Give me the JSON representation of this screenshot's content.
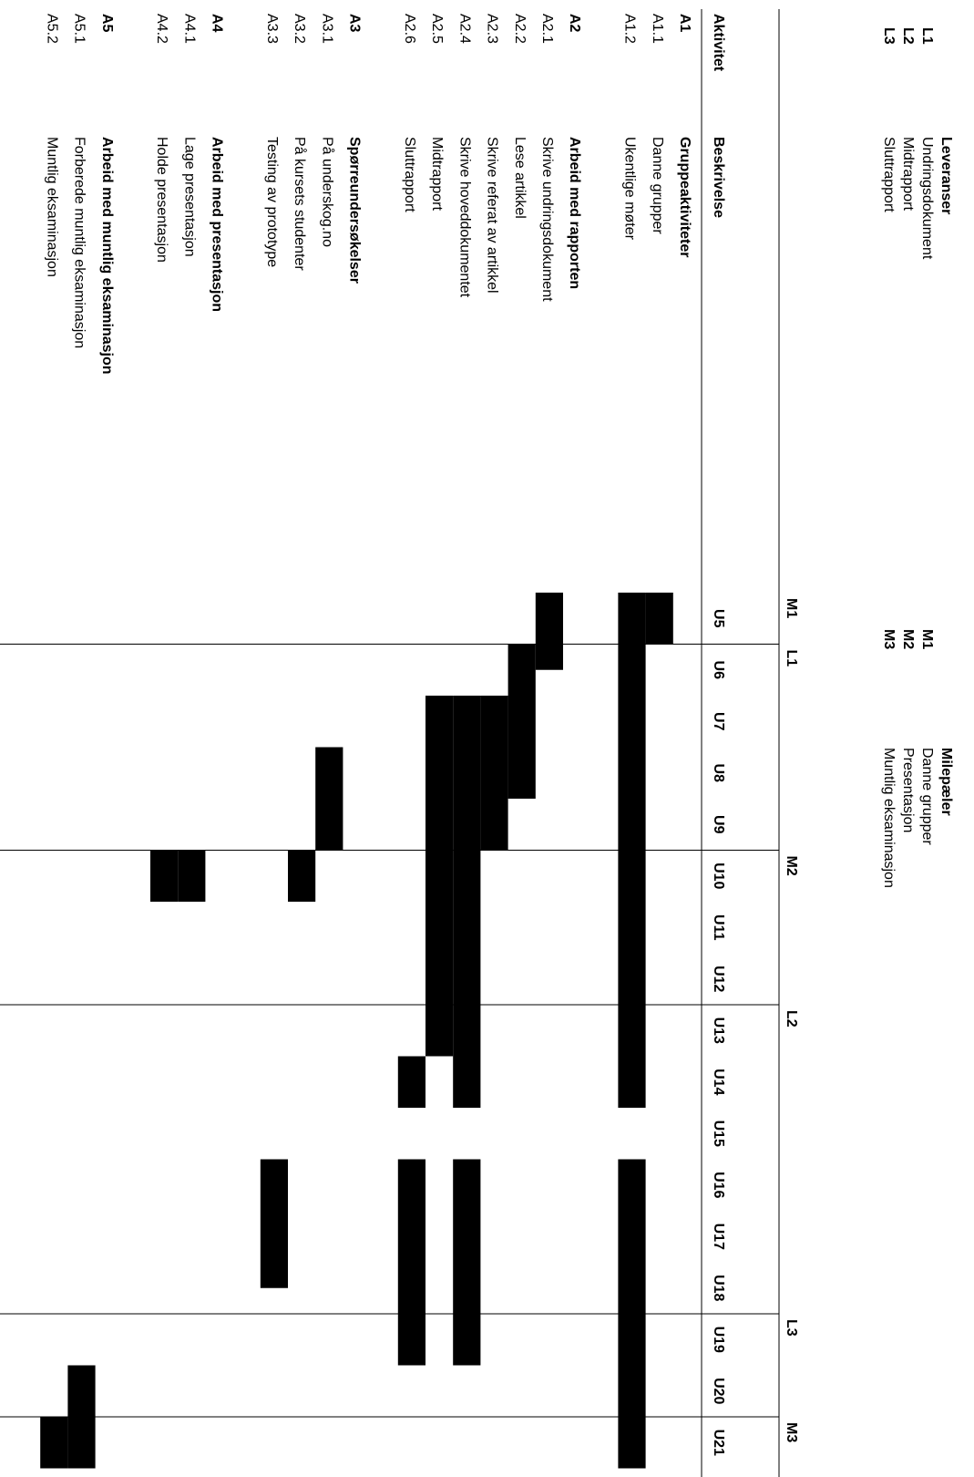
{
  "deliverables": {
    "heading": "Leveranser",
    "items": [
      {
        "code": "L1",
        "name": "Undringsdokument"
      },
      {
        "code": "L2",
        "name": "Midtrapport"
      },
      {
        "code": "L3",
        "name": "Sluttrapport"
      }
    ]
  },
  "milestones": {
    "heading": "Milepæler",
    "items": [
      {
        "code": "M1",
        "name": "Danne grupper"
      },
      {
        "code": "M2",
        "name": "Presentasjon"
      },
      {
        "code": "M3",
        "name": "Muntlig eksaminasjon"
      }
    ]
  },
  "table": {
    "col_activity": "Aktivitet",
    "col_description": "Beskrivelse",
    "highlight_week": "U15",
    "highlight_color": "#ff0000",
    "bar_color": "#000000"
  },
  "chart_data": {
    "type": "gantt",
    "orientation": "rotated 90 degrees clockwise",
    "weeks": [
      "U5",
      "U6",
      "U7",
      "U8",
      "U9",
      "U10",
      "U11",
      "U12",
      "U13",
      "U14",
      "U15",
      "U16",
      "U17",
      "U18",
      "U19",
      "U20",
      "U21"
    ],
    "markers": [
      {
        "label": "M1",
        "week": "U5",
        "position": "start of week"
      },
      {
        "label": "L1",
        "week": "U6",
        "position": "start of week"
      },
      {
        "label": "M2",
        "week": "U10",
        "position": "start of week"
      },
      {
        "label": "L2",
        "week": "U13",
        "position": "start of week"
      },
      {
        "label": "L3",
        "week": "U19",
        "position": "start of week"
      },
      {
        "label": "M3",
        "week": "U21",
        "position": "start of week"
      }
    ],
    "rows": [
      {
        "id": "A1",
        "desc": "Gruppeaktiviteter",
        "group": true
      },
      {
        "id": "A1.1",
        "desc": "Danne grupper",
        "bars": [
          [
            0,
            1
          ]
        ]
      },
      {
        "id": "A1.2",
        "desc": "Ukentlige møter",
        "bars": [
          [
            0,
            10
          ],
          [
            11,
            17
          ]
        ]
      },
      {
        "id": "",
        "desc": "",
        "spacer": true
      },
      {
        "id": "A2",
        "desc": "Arbeid med rapporten",
        "group": true
      },
      {
        "id": "A2.1",
        "desc": "Skrive undringsdokument",
        "bars": [
          [
            0,
            1.5
          ]
        ]
      },
      {
        "id": "A2.2",
        "desc": "Lese artikkel",
        "bars": [
          [
            1,
            4
          ]
        ]
      },
      {
        "id": "A2.3",
        "desc": "Skrive referat av artikkel",
        "bars": [
          [
            2,
            5
          ]
        ]
      },
      {
        "id": "A2.4",
        "desc": "Skrive hoveddokumentet",
        "bars": [
          [
            2,
            10
          ],
          [
            11,
            15
          ]
        ]
      },
      {
        "id": "A2.5",
        "desc": "Midtrapport",
        "bars": [
          [
            2,
            9
          ]
        ]
      },
      {
        "id": "A2.6",
        "desc": "Sluttrapport",
        "bars": [
          [
            9,
            10
          ],
          [
            11,
            15
          ]
        ]
      },
      {
        "id": "",
        "desc": "",
        "spacer": true
      },
      {
        "id": "A3",
        "desc": "Spørreundersøkelser",
        "group": true
      },
      {
        "id": "A3.1",
        "desc": "På underskog.no",
        "bars": [
          [
            3,
            5
          ]
        ]
      },
      {
        "id": "A3.2",
        "desc": "På kursets studenter",
        "bars": [
          [
            5,
            6
          ]
        ]
      },
      {
        "id": "A3.3",
        "desc": "Testing av prototype",
        "bars": [
          [
            11,
            13.5
          ]
        ]
      },
      {
        "id": "",
        "desc": "",
        "spacer": true
      },
      {
        "id": "A4",
        "desc": "Arbeid med presentasjon",
        "group": true
      },
      {
        "id": "A4.1",
        "desc": "Lage presentasjon",
        "bars": [
          [
            5,
            6
          ]
        ]
      },
      {
        "id": "A4.2",
        "desc": "Holde presentasjon",
        "bars": [
          [
            5,
            6
          ]
        ]
      },
      {
        "id": "",
        "desc": "",
        "spacer": true
      },
      {
        "id": "A5",
        "desc": "Arbeid med muntlig eksaminasjon",
        "group": true
      },
      {
        "id": "A5.1",
        "desc": "Forberede muntlig eksaminasjon",
        "bars": [
          [
            15,
            17
          ]
        ]
      },
      {
        "id": "A5.2",
        "desc": "Muntlig eksaminasjon",
        "bars": [
          [
            16,
            17
          ]
        ]
      }
    ]
  }
}
